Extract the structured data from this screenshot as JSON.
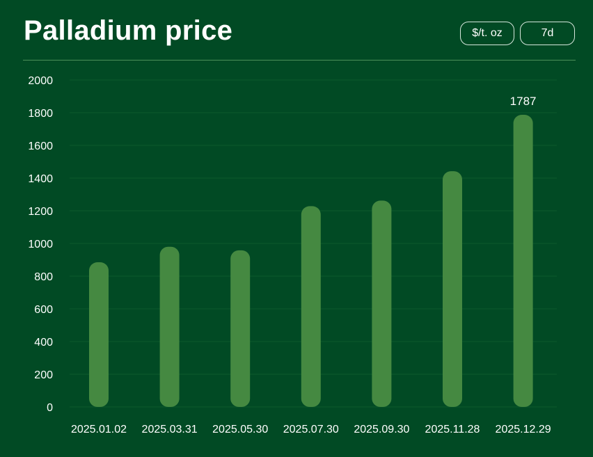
{
  "header": {
    "title": "Palladium price",
    "unit_button": "$/t. oz",
    "range_button": "7d"
  },
  "colors": {
    "background": "#014a24",
    "bar": "#458941",
    "grid": "#0d5a2c"
  },
  "chart_data": {
    "type": "bar",
    "title": "Palladium price",
    "categories": [
      "2025.01.02",
      "2025.03.31",
      "2025.05.30",
      "2025.07.30",
      "2025.09.30",
      "2025.11.28",
      "2025.12.29"
    ],
    "series": [
      {
        "values": [
          885,
          980,
          958,
          1228,
          1262,
          1442,
          1787
        ]
      }
    ],
    "ylim": [
      0,
      2000
    ],
    "yticks": [
      0,
      200,
      400,
      600,
      800,
      1000,
      1200,
      1400,
      1600,
      1800,
      2000
    ],
    "data_labels": [
      {
        "category": "2025.12.29",
        "text": "1787"
      }
    ],
    "grid": true,
    "xlabel": "",
    "ylabel": ""
  }
}
